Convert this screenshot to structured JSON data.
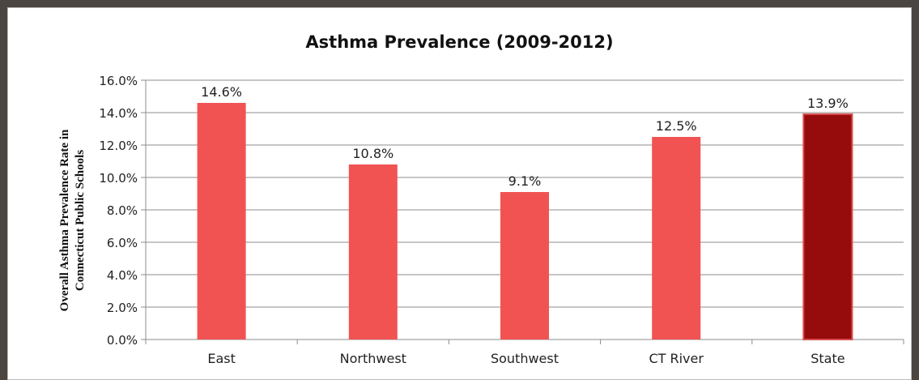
{
  "chart_data": {
    "type": "bar",
    "title": "Asthma Prevalence (2009-2012)",
    "xlabel": "",
    "ylabel_lines": [
      "Overall Asthma Prevalence Rate in",
      "Connecticut Public Schools"
    ],
    "categories": [
      "East",
      "Northwest",
      "Southwest",
      "CT River",
      "State"
    ],
    "values": [
      14.6,
      10.8,
      9.1,
      12.5,
      13.9
    ],
    "value_labels": [
      "14.6%",
      "10.8%",
      "9.1%",
      "12.5%",
      "13.9%"
    ],
    "ylim": [
      0,
      16
    ],
    "yticks": [
      0,
      2,
      4,
      6,
      8,
      10,
      12,
      14,
      16
    ],
    "ytick_labels": [
      "0.0%",
      "2.0%",
      "4.0%",
      "6.0%",
      "8.0%",
      "10.0%",
      "12.0%",
      "14.0%",
      "16.0%"
    ],
    "grid": true,
    "colors": {
      "bar": "#f15353",
      "highlight_bar": "#960c0c",
      "highlight_border": "#d94a4a",
      "grid": "#8c8c8c",
      "frame": "#4a4541"
    },
    "highlight_category": "State"
  }
}
